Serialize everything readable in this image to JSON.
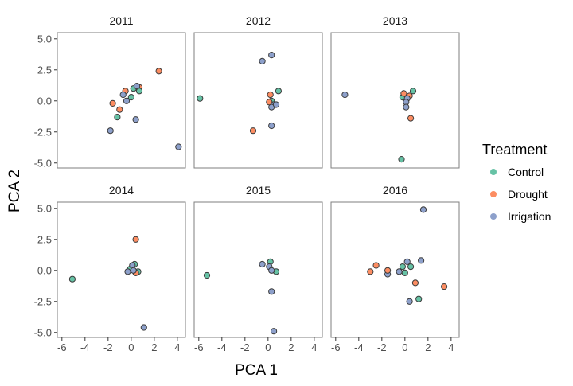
{
  "chart_data": {
    "type": "scatter",
    "facets": [
      "2011",
      "2012",
      "2013",
      "2014",
      "2015",
      "2016"
    ],
    "xlabel": "PCA 1",
    "ylabel": "PCA 2",
    "xlim": [
      -6.4,
      4.7
    ],
    "ylim": [
      -5.4,
      5.5
    ],
    "x_ticks": [
      -6,
      -4,
      -2,
      0,
      2,
      4
    ],
    "x_tick_labels": [
      "-6",
      "-4",
      "-2",
      "0",
      "2",
      "4"
    ],
    "y_ticks": [
      5,
      2.5,
      0,
      -2.5,
      -5
    ],
    "y_tick_labels": [
      "5.0",
      "2.5",
      "0.0",
      "-2.5",
      "-5.0"
    ],
    "grid": false,
    "legend": {
      "title": "Treatment",
      "placement": "right",
      "entries": [
        {
          "name": "Control",
          "color": "#66c2a5"
        },
        {
          "name": "Drought",
          "color": "#fc8d62"
        },
        {
          "name": "Irrigation",
          "color": "#8da0cb"
        }
      ]
    },
    "panels": [
      {
        "facet": "2011",
        "points": [
          {
            "t": "Drought",
            "x": 2.4,
            "y": 2.4
          },
          {
            "t": "Drought",
            "x": 0.7,
            "y": 1.1
          },
          {
            "t": "Drought",
            "x": -0.5,
            "y": 0.8
          },
          {
            "t": "Drought",
            "x": -1.6,
            "y": -0.2
          },
          {
            "t": "Drought",
            "x": -1.0,
            "y": -0.7
          },
          {
            "t": "Control",
            "x": 0.2,
            "y": 1.0
          },
          {
            "t": "Control",
            "x": 0.7,
            "y": 0.8
          },
          {
            "t": "Control",
            "x": 0.0,
            "y": 0.3
          },
          {
            "t": "Control",
            "x": -1.2,
            "y": -1.3
          },
          {
            "t": "Irrigation",
            "x": 0.5,
            "y": 1.2
          },
          {
            "t": "Irrigation",
            "x": -0.7,
            "y": 0.5
          },
          {
            "t": "Irrigation",
            "x": -0.4,
            "y": 0.0
          },
          {
            "t": "Irrigation",
            "x": 0.4,
            "y": -1.5
          },
          {
            "t": "Irrigation",
            "x": -1.8,
            "y": -2.4
          },
          {
            "t": "Irrigation",
            "x": 4.1,
            "y": -3.7
          }
        ]
      },
      {
        "facet": "2012",
        "points": [
          {
            "t": "Control",
            "x": -5.9,
            "y": 0.2
          },
          {
            "t": "Control",
            "x": 0.9,
            "y": 0.8
          },
          {
            "t": "Control",
            "x": 0.3,
            "y": 0.0
          },
          {
            "t": "Drought",
            "x": 0.2,
            "y": 0.5
          },
          {
            "t": "Drought",
            "x": -1.3,
            "y": -2.4
          },
          {
            "t": "Drought",
            "x": 0.1,
            "y": -0.1
          },
          {
            "t": "Irrigation",
            "x": 0.3,
            "y": 3.7
          },
          {
            "t": "Irrigation",
            "x": -0.5,
            "y": 3.2
          },
          {
            "t": "Irrigation",
            "x": 0.5,
            "y": -0.3
          },
          {
            "t": "Irrigation",
            "x": 0.3,
            "y": -0.5
          },
          {
            "t": "Irrigation",
            "x": 0.7,
            "y": -0.3
          },
          {
            "t": "Irrigation",
            "x": 0.3,
            "y": -2.0
          }
        ]
      },
      {
        "facet": "2013",
        "points": [
          {
            "t": "Irrigation",
            "x": -5.2,
            "y": 0.5
          },
          {
            "t": "Control",
            "x": 0.7,
            "y": 0.8
          },
          {
            "t": "Control",
            "x": -0.2,
            "y": 0.3
          },
          {
            "t": "Control",
            "x": -0.3,
            "y": -4.7
          },
          {
            "t": "Drought",
            "x": -0.1,
            "y": 0.6
          },
          {
            "t": "Drought",
            "x": 0.4,
            "y": 0.4
          },
          {
            "t": "Drought",
            "x": 0.5,
            "y": -1.4
          },
          {
            "t": "Irrigation",
            "x": 0.2,
            "y": 0.2
          },
          {
            "t": "Irrigation",
            "x": 0.1,
            "y": -0.1
          },
          {
            "t": "Irrigation",
            "x": 0.1,
            "y": -0.5
          }
        ]
      },
      {
        "facet": "2014",
        "points": [
          {
            "t": "Control",
            "x": -5.1,
            "y": -0.7
          },
          {
            "t": "Control",
            "x": 0.3,
            "y": 0.5
          },
          {
            "t": "Control",
            "x": 0.6,
            "y": -0.1
          },
          {
            "t": "Control",
            "x": -0.1,
            "y": 0.1
          },
          {
            "t": "Drought",
            "x": 0.4,
            "y": 2.5
          },
          {
            "t": "Drought",
            "x": 0.4,
            "y": -0.2
          },
          {
            "t": "Irrigation",
            "x": 0.1,
            "y": 0.4
          },
          {
            "t": "Irrigation",
            "x": -0.3,
            "y": -0.1
          },
          {
            "t": "Irrigation",
            "x": 0.2,
            "y": 0.0
          },
          {
            "t": "Irrigation",
            "x": 1.1,
            "y": -4.6
          }
        ]
      },
      {
        "facet": "2015",
        "points": [
          {
            "t": "Control",
            "x": -5.3,
            "y": -0.4
          },
          {
            "t": "Control",
            "x": 0.2,
            "y": 0.7
          },
          {
            "t": "Control",
            "x": 0.7,
            "y": -0.1
          },
          {
            "t": "Irrigation",
            "x": -0.5,
            "y": 0.5
          },
          {
            "t": "Irrigation",
            "x": 0.1,
            "y": 0.3
          },
          {
            "t": "Irrigation",
            "x": 0.3,
            "y": 0.0
          },
          {
            "t": "Irrigation",
            "x": 0.3,
            "y": -1.7
          },
          {
            "t": "Irrigation",
            "x": 0.5,
            "y": -4.9
          }
        ]
      },
      {
        "facet": "2016",
        "points": [
          {
            "t": "Irrigation",
            "x": 1.6,
            "y": 4.9
          },
          {
            "t": "Irrigation",
            "x": 1.4,
            "y": 0.8
          },
          {
            "t": "Irrigation",
            "x": 0.2,
            "y": 0.7
          },
          {
            "t": "Irrigation",
            "x": -0.5,
            "y": -0.1
          },
          {
            "t": "Irrigation",
            "x": 0.4,
            "y": -2.5
          },
          {
            "t": "Irrigation",
            "x": -1.5,
            "y": -0.3
          },
          {
            "t": "Drought",
            "x": -2.5,
            "y": 0.4
          },
          {
            "t": "Drought",
            "x": -3.0,
            "y": -0.1
          },
          {
            "t": "Drought",
            "x": -1.5,
            "y": 0.0
          },
          {
            "t": "Drought",
            "x": 0.9,
            "y": -1.0
          },
          {
            "t": "Drought",
            "x": 3.4,
            "y": -1.3
          },
          {
            "t": "Control",
            "x": -0.2,
            "y": 0.3
          },
          {
            "t": "Control",
            "x": 0.5,
            "y": 0.3
          },
          {
            "t": "Control",
            "x": 0.0,
            "y": -0.2
          },
          {
            "t": "Control",
            "x": 1.2,
            "y": -2.3
          }
        ]
      }
    ]
  }
}
